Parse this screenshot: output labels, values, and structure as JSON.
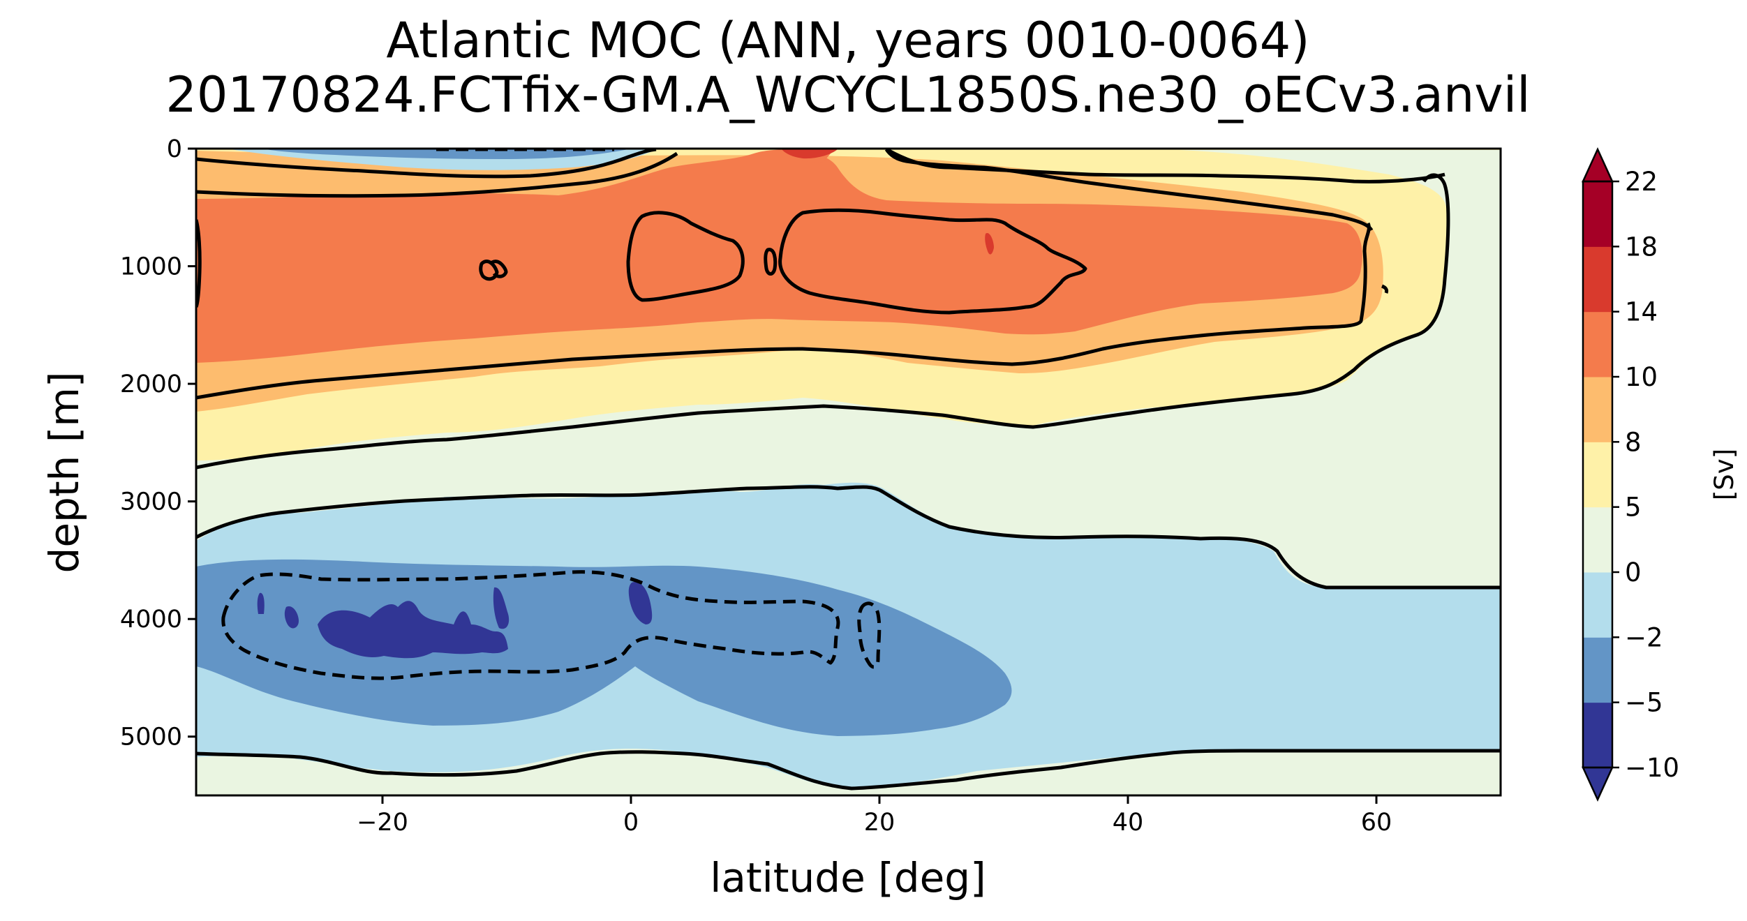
{
  "chart_data": {
    "type": "heatmap",
    "subtype": "filled-contour",
    "title": "Atlantic MOC (ANN, years 0010-0064)",
    "subtitle": "20170824.FCTfix-GM.A_WCYCL1850S.ne30_oECv3.anvil",
    "xlabel": "latitude [deg]",
    "ylabel": "depth [m]",
    "xlim": [
      -35,
      70
    ],
    "ylim": [
      5500,
      0
    ],
    "y_inverted": true,
    "xticks": [
      -20,
      0,
      20,
      40,
      60
    ],
    "xtick_labels": [
      "−20",
      "0",
      "20",
      "40",
      "60"
    ],
    "yticks": [
      0,
      1000,
      2000,
      3000,
      4000,
      5000
    ],
    "ytick_labels": [
      "0",
      "1000",
      "2000",
      "3000",
      "4000",
      "5000"
    ],
    "colorbar": {
      "label": "[Sv]",
      "levels": [
        -10,
        -5,
        -2,
        0,
        5,
        8,
        10,
        14,
        18,
        22
      ],
      "tick_labels": [
        "−10",
        "−5",
        "−2",
        "0",
        "5",
        "8",
        "10",
        "14",
        "18",
        "22"
      ],
      "colors": [
        "#313695",
        "#6395c6",
        "#b3ddec",
        "#eaf5e1",
        "#fef1a8",
        "#fdbc6e",
        "#f47b4c",
        "#d93a2d",
        "#a50026"
      ],
      "extend": "both"
    },
    "contour_lines": [
      {
        "level": -5,
        "style": "dashed"
      },
      {
        "level": 0,
        "style": "solid"
      },
      {
        "level": 5,
        "style": "solid"
      },
      {
        "level": 10,
        "style": "solid"
      }
    ],
    "features": [
      {
        "name": "upper overturning cell",
        "type": "max",
        "lat": [
          -35,
          60
        ],
        "depth": [
          0,
          2500
        ],
        "value_range": [
          5,
          14
        ]
      },
      {
        "name": "lower overturning cell",
        "type": "min",
        "lat": [
          -35,
          33
        ],
        "depth": [
          3000,
          5300
        ],
        "value_range": [
          -10,
          -2
        ]
      }
    ]
  }
}
